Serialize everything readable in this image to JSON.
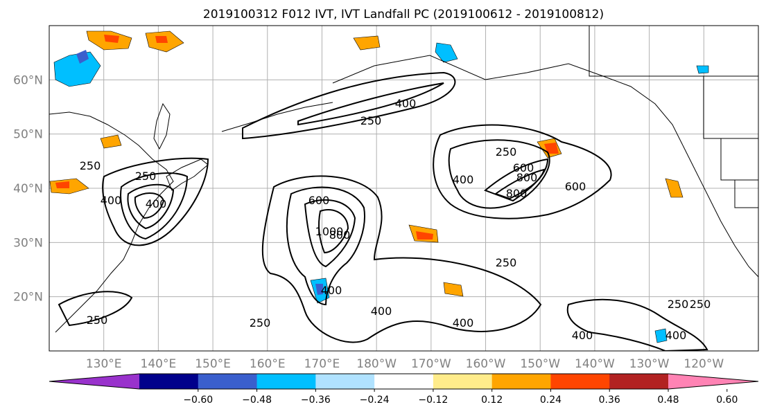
{
  "title": "2019100312 F012 IVT, IVT Landfall PC (2019100612 - 2019100812)",
  "lon_labels": [
    "130°E",
    "140°E",
    "150°E",
    "160°E",
    "170°E",
    "180°W",
    "170°W",
    "160°W",
    "150°W",
    "140°W",
    "130°W",
    "120°W"
  ],
  "lat_labels": [
    "60°N",
    "50°N",
    "40°N",
    "30°N",
    "20°N"
  ],
  "colorbar": {
    "colors": [
      "#9932cc",
      "#00008b",
      "#3a5fcd",
      "#00bfff",
      "#b0e2ff",
      "#ffffff",
      "#ffec8b",
      "#ffa500",
      "#ff4500",
      "#b22222",
      "#ff83b4"
    ],
    "tick_labels": [
      "−0.60",
      "−0.48",
      "−0.36",
      "−0.24",
      "−0.12",
      "0.12",
      "0.24",
      "0.36",
      "0.48",
      "0.60"
    ]
  },
  "contour_labels": [
    "250",
    "250",
    "250",
    "250",
    "250",
    "250",
    "250",
    "400",
    "400",
    "400",
    "400",
    "400",
    "400",
    "400",
    "400",
    "400",
    "600",
    "800",
    "1000",
    "800",
    "600",
    "800",
    "600",
    "250",
    "250"
  ],
  "ivt_contour_levels": [
    250,
    400,
    600,
    800,
    1000
  ],
  "map": {
    "projection": "PlateCarree",
    "lon_range": [
      120,
      250
    ],
    "lat_range": [
      10,
      70
    ],
    "gridlines": true
  }
}
